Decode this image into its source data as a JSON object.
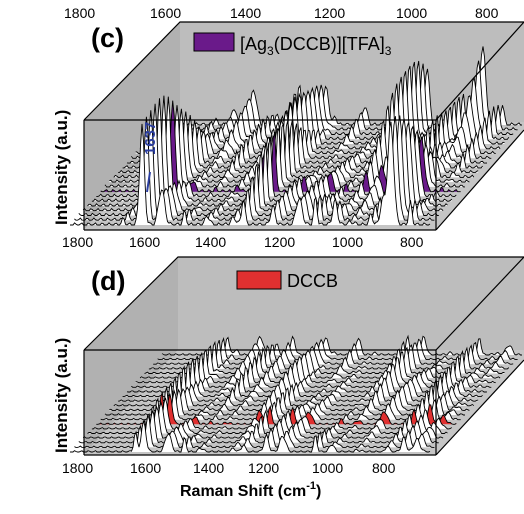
{
  "chart_data": [
    {
      "type": "line",
      "panel_label": "(c)",
      "legend": [
        {
          "name": "[Ag3(DCCB)][TFA]3",
          "color": "#6a1a8a"
        }
      ],
      "legend_text": {
        "base": "[Ag",
        "sub1": "3",
        "mid": "(DCCB)][TFA]",
        "sub2": "3"
      },
      "ylabel": "Intensity (a.u.)",
      "xlabel": "",
      "x_ticks_top": [
        "1800",
        "1600",
        "1400",
        "1200",
        "1000",
        "800"
      ],
      "x_ticks_bottom": [
        "1800",
        "1600",
        "1400",
        "1200",
        "1000",
        "800"
      ],
      "xlim": [
        1800,
        700
      ],
      "annotation": "1637",
      "background": "#bdbdbd",
      "n_spectra": 22,
      "highlight_index": 7,
      "peaks": [
        {
          "x": 1637,
          "height": 0.1
        },
        {
          "x": 1580,
          "height": 1.0
        },
        {
          "x": 1520,
          "height": 0.35
        },
        {
          "x": 1450,
          "height": 0.2
        },
        {
          "x": 1380,
          "height": 0.4
        },
        {
          "x": 1300,
          "height": 0.55
        },
        {
          "x": 1270,
          "height": 0.6
        },
        {
          "x": 1180,
          "height": 0.2
        },
        {
          "x": 1100,
          "height": 0.25
        },
        {
          "x": 1050,
          "height": 0.35
        },
        {
          "x": 990,
          "height": 0.75
        },
        {
          "x": 940,
          "height": 0.3
        },
        {
          "x": 880,
          "height": 0.35
        },
        {
          "x": 845,
          "height": 0.3
        },
        {
          "x": 820,
          "height": 0.95
        },
        {
          "x": 760,
          "height": 0.25
        }
      ]
    },
    {
      "type": "line",
      "panel_label": "(d)",
      "legend": [
        {
          "name": "DCCB",
          "color": "#e03030"
        }
      ],
      "ylabel": "Intensity (a.u.)",
      "xlabel": "Raman Shift (cm-1)",
      "xlabel_text": {
        "base": "Raman Shift (cm",
        "sup": "-1",
        "end": ")"
      },
      "x_ticks_bottom": [
        "1800",
        "1600",
        "1400",
        "1200",
        "1000",
        "800"
      ],
      "xlim": [
        1800,
        700
      ],
      "background": "#bdbdbd",
      "n_spectra": 22,
      "highlight_index": 6,
      "peaks": [
        {
          "x": 1600,
          "height": 0.55
        },
        {
          "x": 1575,
          "height": 0.5
        },
        {
          "x": 1500,
          "height": 0.3
        },
        {
          "x": 1450,
          "height": 0.35
        },
        {
          "x": 1400,
          "height": 0.3
        },
        {
          "x": 1300,
          "height": 0.4
        },
        {
          "x": 1270,
          "height": 0.3
        },
        {
          "x": 1200,
          "height": 0.3
        },
        {
          "x": 1150,
          "height": 0.25
        },
        {
          "x": 1050,
          "height": 0.35
        },
        {
          "x": 1000,
          "height": 0.4
        },
        {
          "x": 920,
          "height": 0.3
        },
        {
          "x": 830,
          "height": 0.35
        },
        {
          "x": 780,
          "height": 0.3
        },
        {
          "x": 740,
          "height": 0.2
        }
      ]
    }
  ]
}
